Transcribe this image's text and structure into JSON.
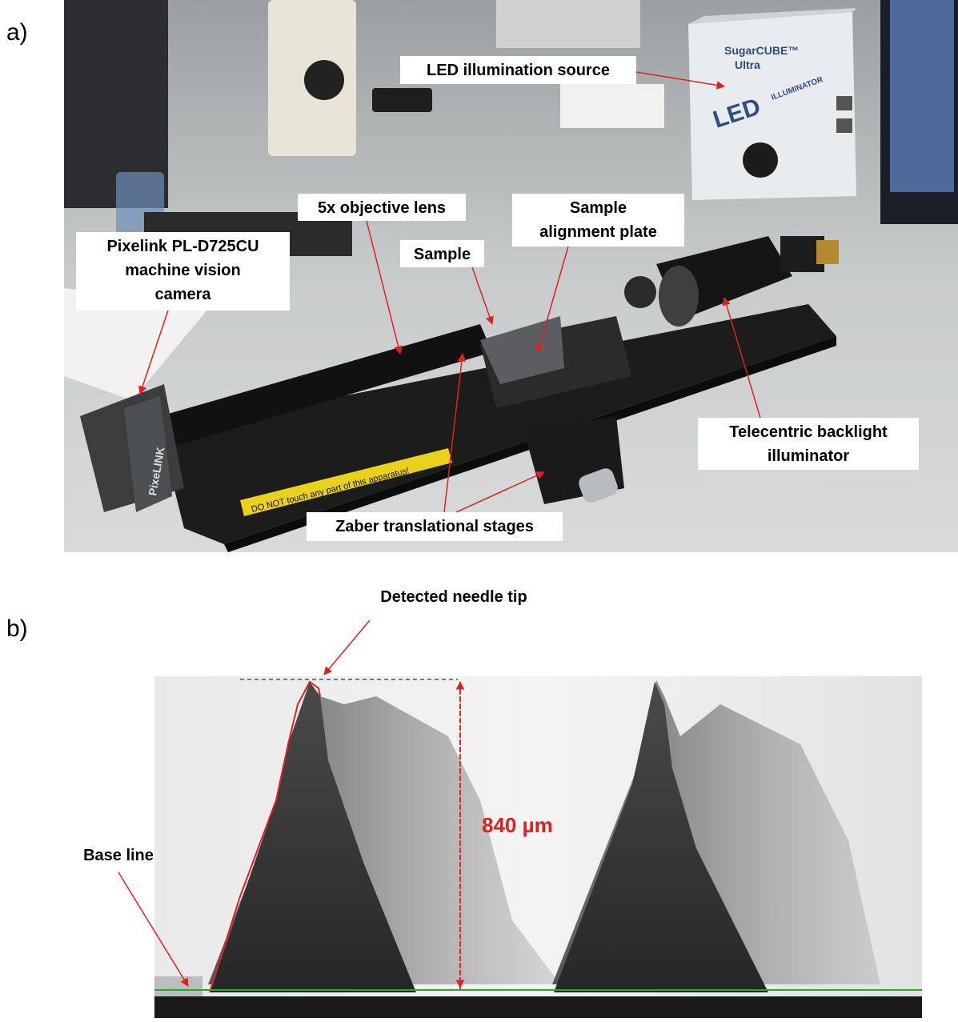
{
  "panels": [
    {
      "label": "a)",
      "callouts": [
        {
          "lines": [
            "LED illumination source"
          ]
        },
        {
          "lines": [
            "5x objective lens"
          ]
        },
        {
          "lines": [
            "Sample",
            "alignment plate"
          ]
        },
        {
          "lines": [
            "Sample"
          ]
        },
        {
          "lines": [
            "Pixelink PL-D725CU",
            "machine vision",
            "camera"
          ]
        },
        {
          "lines": [
            "Telecentric backlight",
            "illuminator"
          ]
        },
        {
          "lines": [
            "Zaber translational stages"
          ]
        }
      ],
      "photo_texts": {
        "brand": "SugarCUBE™",
        "model": "Ultra",
        "led": "LED",
        "illuminator": "ILLUMINATOR",
        "warning": "DO NOT touch any part of this apparatus!",
        "camera_brand": "PixeLINK"
      }
    },
    {
      "label": "b)",
      "annotations": {
        "tip": "Detected needle tip",
        "height": "840 µm",
        "baseline": "Base line"
      }
    }
  ]
}
